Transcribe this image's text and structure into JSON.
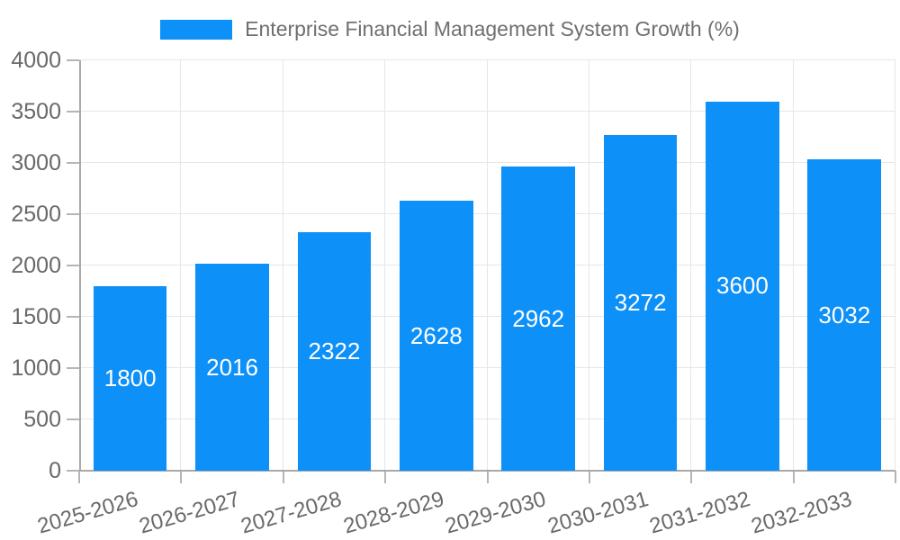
{
  "chart_data": {
    "type": "bar",
    "title": "Enterprise Financial Management System Growth (%)",
    "categories": [
      "2025-2026",
      "2026-2027",
      "2027-2028",
      "2028-2029",
      "2029-2030",
      "2030-2031",
      "2031-2032",
      "2032-2033"
    ],
    "values": [
      1800,
      2016,
      2322,
      2628,
      2962,
      3272,
      3600,
      3032
    ],
    "xlabel": "",
    "ylabel": "",
    "ylim": [
      0,
      4000
    ],
    "yticks": [
      0,
      500,
      1000,
      1500,
      2000,
      2500,
      3000,
      3500,
      4000
    ],
    "grid": true,
    "legend_position": "top",
    "value_labels_inside_bars": true,
    "bar_color": "#0d90f8"
  },
  "colors": {
    "background": "#ffffff",
    "bar": "#0d90f8",
    "grid": "#e6e6e6",
    "axis": "#a9a9a9",
    "tick_mark": "#b5b5b5",
    "tick_label_text": "#696969",
    "legend_text": "#6f6f6f",
    "value_label_text": "#ffffff"
  }
}
